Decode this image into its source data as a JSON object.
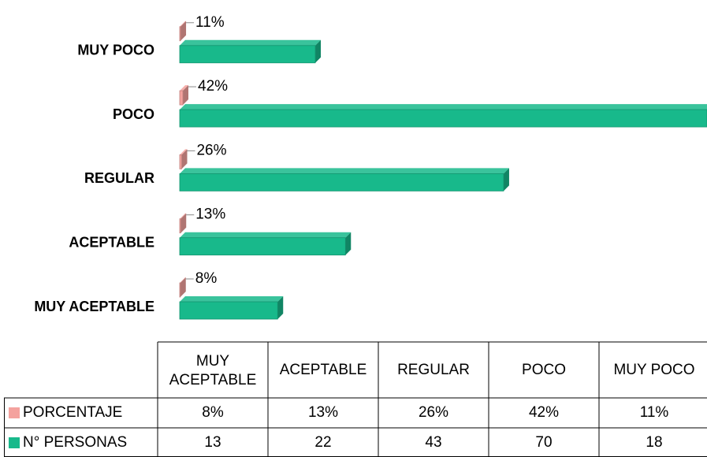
{
  "chart_data": {
    "type": "bar",
    "orientation": "horizontal",
    "three_d": true,
    "categories": [
      "MUY ACEPTABLE",
      "ACEPTABLE",
      "REGULAR",
      "POCO",
      "MUY POCO"
    ],
    "series": [
      {
        "name": "PORCENTAJE",
        "color": "#f4a29e",
        "values": [
          0.08,
          0.13,
          0.26,
          0.42,
          0.11
        ],
        "value_labels": [
          "8%",
          "13%",
          "26%",
          "42%",
          "11%"
        ]
      },
      {
        "name": "N° PERSONAS",
        "color": "#18b98b",
        "values": [
          13,
          22,
          43,
          70,
          18
        ]
      }
    ],
    "xlim": [
      0,
      70
    ],
    "data_table": true
  }
}
